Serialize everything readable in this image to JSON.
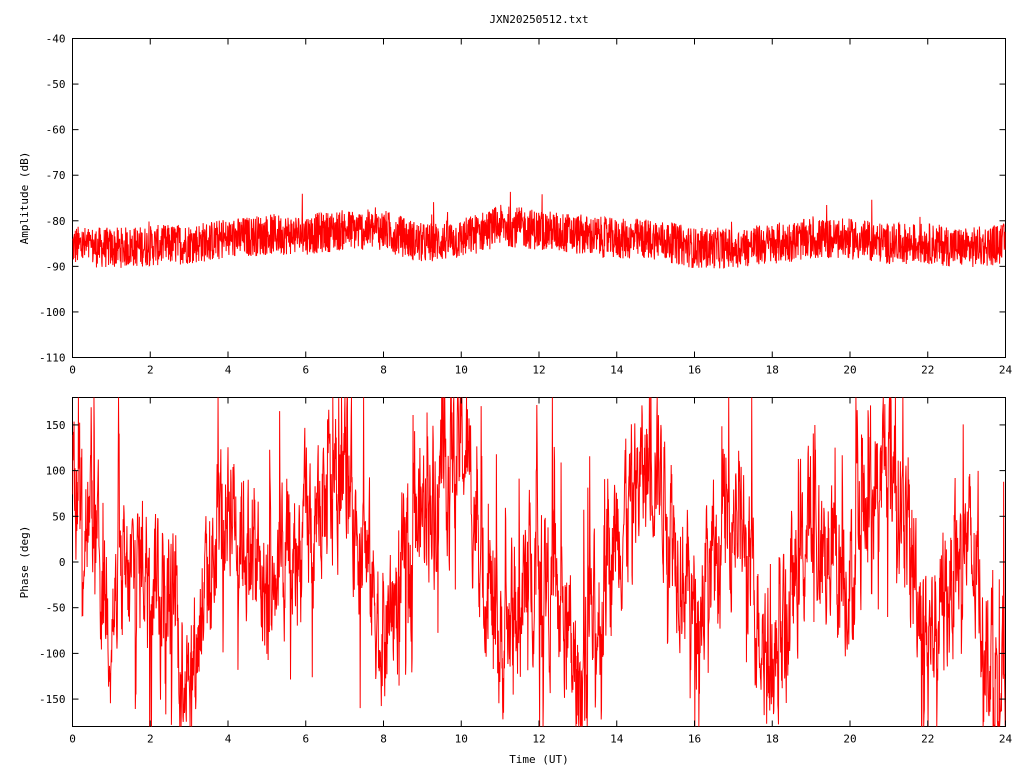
{
  "chart_data": [
    {
      "type": "line",
      "title": "JXN20250512.txt",
      "xlabel": "",
      "ylabel": "Amplitude (dB)",
      "xlim": [
        0,
        24
      ],
      "ylim": [
        -110,
        -40
      ],
      "x_ticks": [
        "0",
        "2",
        "4",
        "6",
        "8",
        "10",
        "12",
        "14",
        "16",
        "18",
        "20",
        "22",
        "24"
      ],
      "y_ticks": [
        "-40",
        "-50",
        "-60",
        "-70",
        "-80",
        "-90",
        "-100",
        "-110"
      ],
      "grid": false,
      "series": [
        {
          "color": "#ff0000",
          "x": [
            0,
            1,
            2,
            3,
            4,
            5,
            6,
            7,
            8,
            9,
            10,
            11,
            12,
            13,
            14,
            15,
            16,
            17,
            18,
            19,
            20,
            21,
            22,
            23,
            24
          ],
          "values": [
            -85.5,
            -86,
            -85.5,
            -85,
            -84,
            -83,
            -83,
            -82,
            -82,
            -85,
            -84,
            -81,
            -82,
            -83,
            -84,
            -84,
            -86,
            -86,
            -85,
            -84,
            -84,
            -85,
            -85,
            -86,
            -85
          ]
        }
      ]
    },
    {
      "type": "line",
      "title": "",
      "xlabel": "Time (UT)",
      "ylabel": "Phase (deg)",
      "xlim": [
        0,
        24
      ],
      "ylim": [
        -180,
        180
      ],
      "x_ticks": [
        "0",
        "2",
        "4",
        "6",
        "8",
        "10",
        "12",
        "14",
        "16",
        "18",
        "20",
        "22",
        "24"
      ],
      "y_ticks": [
        "150",
        "100",
        "50",
        "0",
        "-50",
        "-100",
        "-150"
      ],
      "grid": false,
      "series": [
        {
          "color": "#ff0000",
          "x": [
            0,
            1,
            2,
            3,
            4,
            5,
            6,
            7,
            8,
            9,
            10,
            11,
            12,
            13,
            14,
            15,
            16,
            17,
            18,
            19,
            20,
            21,
            22,
            23,
            24
          ],
          "values": [
            100,
            -60,
            20,
            -120,
            80,
            -40,
            30,
            100,
            -80,
            60,
            140,
            -100,
            20,
            -140,
            40,
            120,
            -60,
            60,
            -120,
            40,
            -20,
            130,
            -80,
            20,
            -150
          ]
        }
      ]
    }
  ]
}
